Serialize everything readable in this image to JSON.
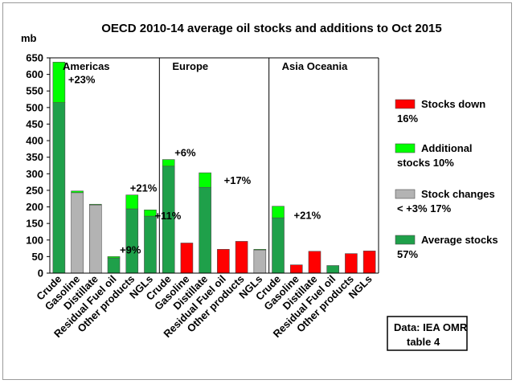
{
  "chart_data": {
    "type": "bar",
    "title": "OECD 2010-14 average oil stocks and additions to Oct 2015",
    "ylabel": "mb",
    "ylim": [
      0,
      650
    ],
    "yticks": [
      0,
      50,
      100,
      150,
      200,
      250,
      300,
      350,
      400,
      450,
      500,
      550,
      600,
      650
    ],
    "grid": false,
    "legend_position": "right",
    "colors": {
      "stocks_down": "#ff0000",
      "additional": "#00ff00",
      "stock_changes": "#b3b3b3",
      "average": "#1fa04a",
      "axis": "#000000",
      "divider": "#000000"
    },
    "legend": [
      {
        "key": "stocks_down",
        "line1": "Stocks down",
        "line2": "16%"
      },
      {
        "key": "additional",
        "line1": "Additional",
        "line2": "stocks 10%"
      },
      {
        "key": "stock_changes",
        "line1": "Stock changes",
        "line2": "< +3%    17%"
      },
      {
        "key": "average",
        "line1": "Average stocks",
        "line2": "57%"
      }
    ],
    "source_note": {
      "line1": "Data: IEA OMR",
      "line2": "table 4"
    },
    "regions": [
      {
        "name": "Americas",
        "bars": [
          {
            "category": "Crude",
            "kind": "average",
            "base": 515,
            "addition": 122,
            "annotation": "+23%"
          },
          {
            "category": "Gasoline",
            "kind": "stock_changes",
            "base": 243,
            "addition": 5,
            "annotation": ""
          },
          {
            "category": "Distillate",
            "kind": "stock_changes",
            "base": 206,
            "addition": 2,
            "annotation": ""
          },
          {
            "category": "Residual Fuel oil",
            "kind": "average",
            "base": 46,
            "addition": 4,
            "annotation": "+9%"
          },
          {
            "category": "Other products",
            "kind": "average",
            "base": 194,
            "addition": 42,
            "annotation": "+21%"
          },
          {
            "category": "NGLs",
            "kind": "average",
            "base": 172,
            "addition": 19,
            "annotation": "+11%"
          }
        ]
      },
      {
        "name": "Europe",
        "bars": [
          {
            "category": "Crude",
            "kind": "average",
            "base": 323,
            "addition": 20,
            "annotation": "+6%"
          },
          {
            "category": "Gasoline",
            "kind": "stocks_down",
            "base": 91,
            "addition": 0,
            "annotation": ""
          },
          {
            "category": "Distillate",
            "kind": "average",
            "base": 259,
            "addition": 44,
            "annotation": "+17%"
          },
          {
            "category": "Residual Fuel oil",
            "kind": "stocks_down",
            "base": 72,
            "addition": 0,
            "annotation": ""
          },
          {
            "category": "Other products",
            "kind": "stocks_down",
            "base": 96,
            "addition": 0,
            "annotation": ""
          },
          {
            "category": "NGLs",
            "kind": "stock_changes",
            "base": 70,
            "addition": 2,
            "annotation": ""
          }
        ]
      },
      {
        "name": "Asia Oceania",
        "bars": [
          {
            "category": "Crude",
            "kind": "average",
            "base": 167,
            "addition": 35,
            "annotation": "+21%"
          },
          {
            "category": "Gasoline",
            "kind": "stocks_down",
            "base": 25,
            "addition": 0,
            "annotation": ""
          },
          {
            "category": "Distillate",
            "kind": "stocks_down",
            "base": 66,
            "addition": 0,
            "annotation": ""
          },
          {
            "category": "Residual Fuel oil",
            "kind": "average",
            "base": 23,
            "addition": 0,
            "annotation": ""
          },
          {
            "category": "Other products",
            "kind": "stocks_down",
            "base": 59,
            "addition": 0,
            "annotation": ""
          },
          {
            "category": "NGLs",
            "kind": "stocks_down",
            "base": 67,
            "addition": 0,
            "annotation": ""
          }
        ]
      }
    ]
  }
}
